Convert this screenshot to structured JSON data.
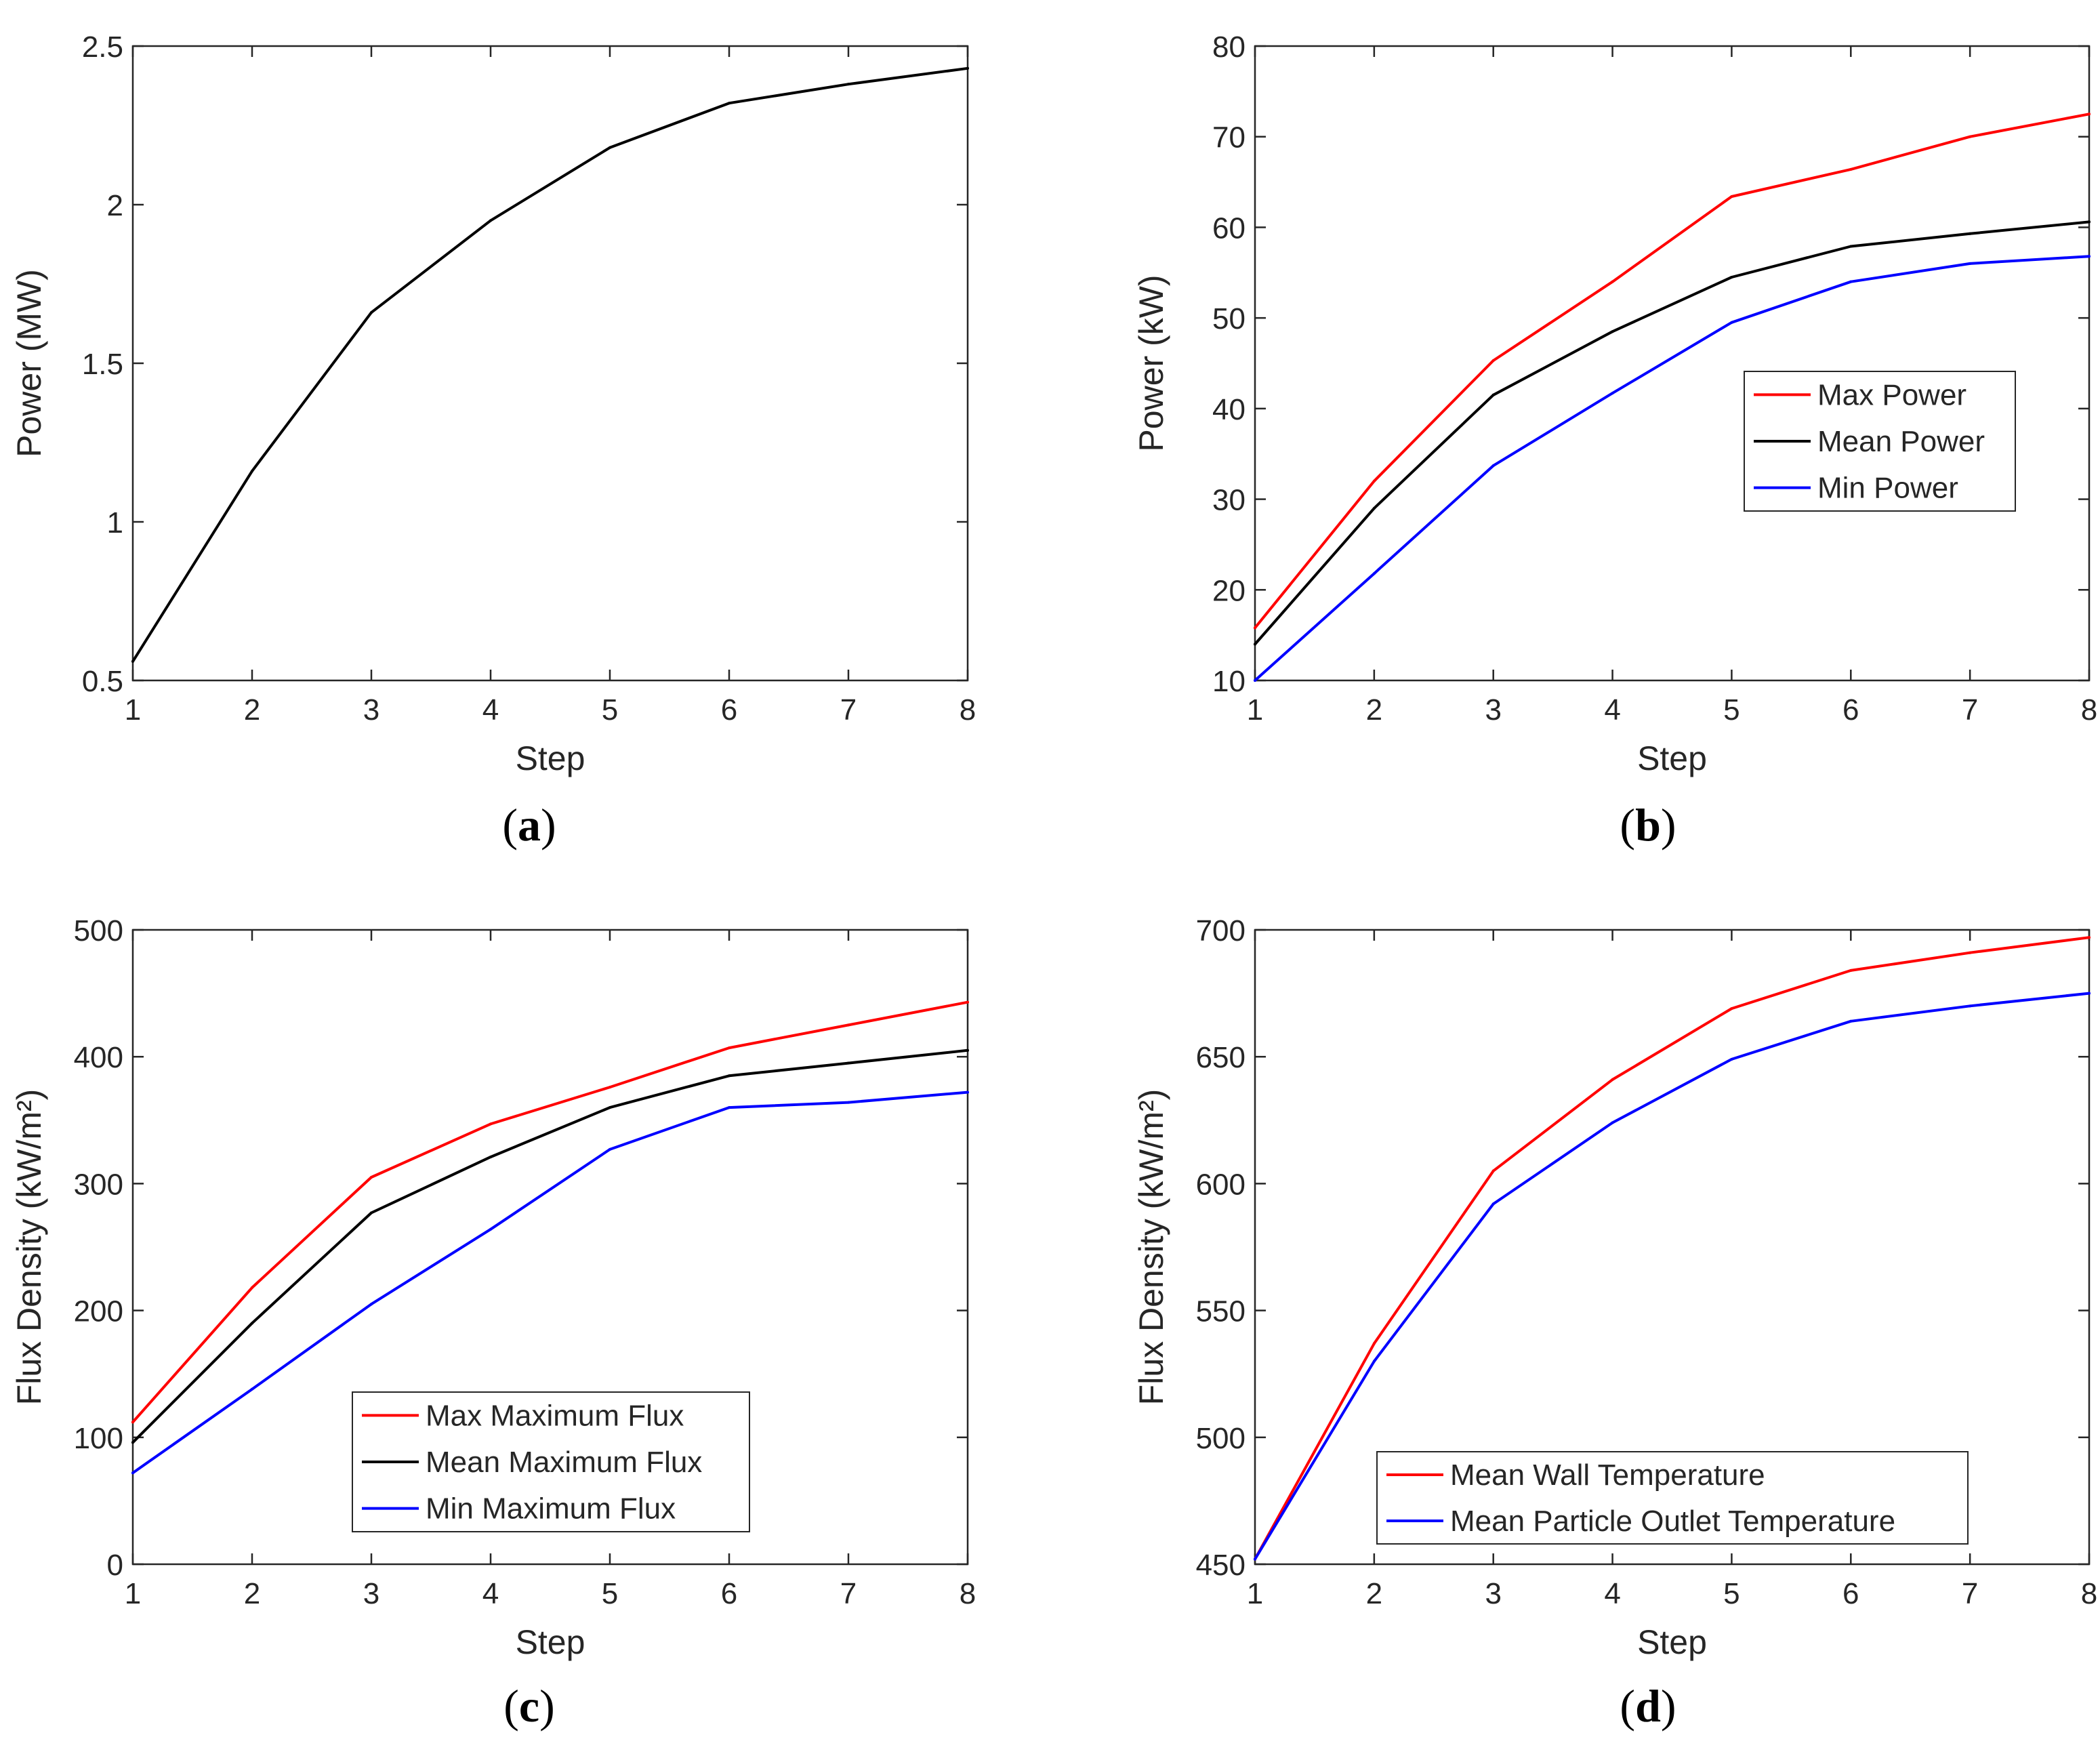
{
  "figure": {
    "panel_labels": [
      {
        "prefix": "(",
        "letter": "a",
        "suffix": ")"
      },
      {
        "prefix": "(",
        "letter": "b",
        "suffix": ")"
      },
      {
        "prefix": "(",
        "letter": "c",
        "suffix": ")"
      },
      {
        "prefix": "(",
        "letter": "d",
        "suffix": ")"
      }
    ]
  },
  "chart_data": [
    {
      "type": "line",
      "panel": "a",
      "title": "",
      "xlabel": "Step",
      "ylabel": "Power (MW)",
      "x": [
        1,
        2,
        3,
        4,
        5,
        6,
        7,
        8
      ],
      "xlim": [
        1,
        8
      ],
      "ylim": [
        0.5,
        2.5
      ],
      "xticks": [
        1,
        2,
        3,
        4,
        5,
        6,
        7,
        8
      ],
      "yticks": [
        0.5,
        1,
        1.5,
        2,
        2.5
      ],
      "ytick_labels": [
        "0.5",
        "1",
        "1.5",
        "2",
        "2.5"
      ],
      "grid": false,
      "legend": null,
      "series": [
        {
          "name": "Power",
          "color": "#000000",
          "values": [
            0.56,
            1.16,
            1.66,
            1.95,
            2.18,
            2.32,
            2.38,
            2.43
          ]
        }
      ]
    },
    {
      "type": "line",
      "panel": "b",
      "title": "",
      "xlabel": "Step",
      "ylabel": "Power (kW)",
      "x": [
        1,
        2,
        3,
        4,
        5,
        6,
        7,
        8
      ],
      "xlim": [
        1,
        8
      ],
      "ylim": [
        10,
        80
      ],
      "xticks": [
        1,
        2,
        3,
        4,
        5,
        6,
        7,
        8
      ],
      "yticks": [
        10,
        20,
        30,
        40,
        50,
        60,
        70,
        80
      ],
      "ytick_labels": [
        "10",
        "20",
        "30",
        "40",
        "50",
        "60",
        "70",
        "80"
      ],
      "grid": false,
      "legend": "center-right",
      "series": [
        {
          "name": "Max Power",
          "color": "#ff0000",
          "values": [
            15.8,
            32.0,
            45.3,
            54.0,
            63.4,
            66.4,
            70.0,
            72.5
          ]
        },
        {
          "name": "Mean Power",
          "color": "#000000",
          "values": [
            14.0,
            29.0,
            41.5,
            48.5,
            54.5,
            57.9,
            59.3,
            60.6
          ]
        },
        {
          "name": "Min Power",
          "color": "#0000ff",
          "values": [
            10.0,
            21.8,
            33.7,
            41.7,
            49.5,
            54.0,
            56.0,
            56.8
          ]
        }
      ]
    },
    {
      "type": "line",
      "panel": "c",
      "title": "",
      "xlabel": "Step",
      "ylabel": "Flux Density (kW/m²)",
      "x": [
        1,
        2,
        3,
        4,
        5,
        6,
        7,
        8
      ],
      "xlim": [
        1,
        8
      ],
      "ylim": [
        0,
        500
      ],
      "xticks": [
        1,
        2,
        3,
        4,
        5,
        6,
        7,
        8
      ],
      "yticks": [
        0,
        100,
        200,
        300,
        400,
        500
      ],
      "ytick_labels": [
        "0",
        "100",
        "200",
        "300",
        "400",
        "500"
      ],
      "grid": false,
      "legend": "bottom-center",
      "series": [
        {
          "name": "Max Maximum Flux",
          "color": "#ff0000",
          "values": [
            112,
            218,
            305,
            347,
            376,
            407,
            425,
            443
          ]
        },
        {
          "name": "Mean Maximum Flux",
          "color": "#000000",
          "values": [
            96,
            190,
            277,
            321,
            360,
            385,
            395,
            405
          ]
        },
        {
          "name": "Min Maximum Flux",
          "color": "#0000ff",
          "values": [
            72,
            138,
            205,
            264,
            327,
            360,
            364,
            372
          ]
        }
      ]
    },
    {
      "type": "line",
      "panel": "d",
      "title": "",
      "xlabel": "Step",
      "ylabel": "Flux Density (kW/m²)",
      "x": [
        1,
        2,
        3,
        4,
        5,
        6,
        7,
        8
      ],
      "xlim": [
        1,
        8
      ],
      "ylim": [
        450,
        700
      ],
      "xticks": [
        1,
        2,
        3,
        4,
        5,
        6,
        7,
        8
      ],
      "yticks": [
        450,
        500,
        550,
        600,
        650,
        700
      ],
      "ytick_labels": [
        "450",
        "500",
        "550",
        "600",
        "650",
        "700"
      ],
      "grid": false,
      "legend": "bottom-center",
      "series": [
        {
          "name": "Mean Wall Temperature",
          "color": "#ff0000",
          "values": [
            452,
            537,
            605,
            641,
            669,
            684,
            691,
            697
          ]
        },
        {
          "name": "Mean Particle Outlet Temperature",
          "color": "#0000ff",
          "values": [
            452,
            530,
            592,
            624,
            649,
            664,
            670,
            675
          ]
        }
      ]
    }
  ]
}
